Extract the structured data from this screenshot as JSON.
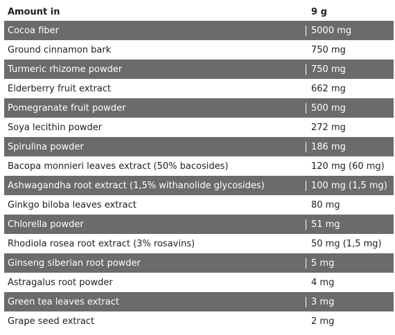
{
  "header": {
    "name": "Amount in",
    "amount": "9 g"
  },
  "rows": [
    {
      "name": "Cocoa fiber",
      "amount": "5000 mg"
    },
    {
      "name": "Ground cinnamon bark",
      "amount": "750 mg"
    },
    {
      "name": "Turmeric rhizome powder",
      "amount": "750 mg"
    },
    {
      "name": "Elderberry fruit extract",
      "amount": "662 mg"
    },
    {
      "name": "Pomegranate fruit powder",
      "amount": "500 mg"
    },
    {
      "name": "Soya lecithin powder",
      "amount": "272 mg"
    },
    {
      "name": "Spirulina powder",
      "amount": "186 mg"
    },
    {
      "name": "Bacopa monnieri leaves extract (50% bacosides)",
      "amount": "120 mg (60 mg)"
    },
    {
      "name": "Ashwagandha root extract (1,5% withanolide glycosides)",
      "amount": "100 mg (1,5 mg)"
    },
    {
      "name": "Ginkgo biloba leaves extract",
      "amount": "80 mg"
    },
    {
      "name": "Chlorella powder",
      "amount": "51 mg"
    },
    {
      "name": "Rhodiola rosea root extract (3% rosavins)",
      "amount": "50 mg (1,5 mg)"
    },
    {
      "name": "Ginseng siberian root powder",
      "amount": "5 mg"
    },
    {
      "name": "Astragalus root powder",
      "amount": "4 mg"
    },
    {
      "name": "Green tea leaves extract",
      "amount": "3 mg"
    },
    {
      "name": "Grape seed extract",
      "amount": "2 mg"
    }
  ],
  "colors": {
    "stripe": "#6b6b6b",
    "text": "#1e1e1e"
  }
}
